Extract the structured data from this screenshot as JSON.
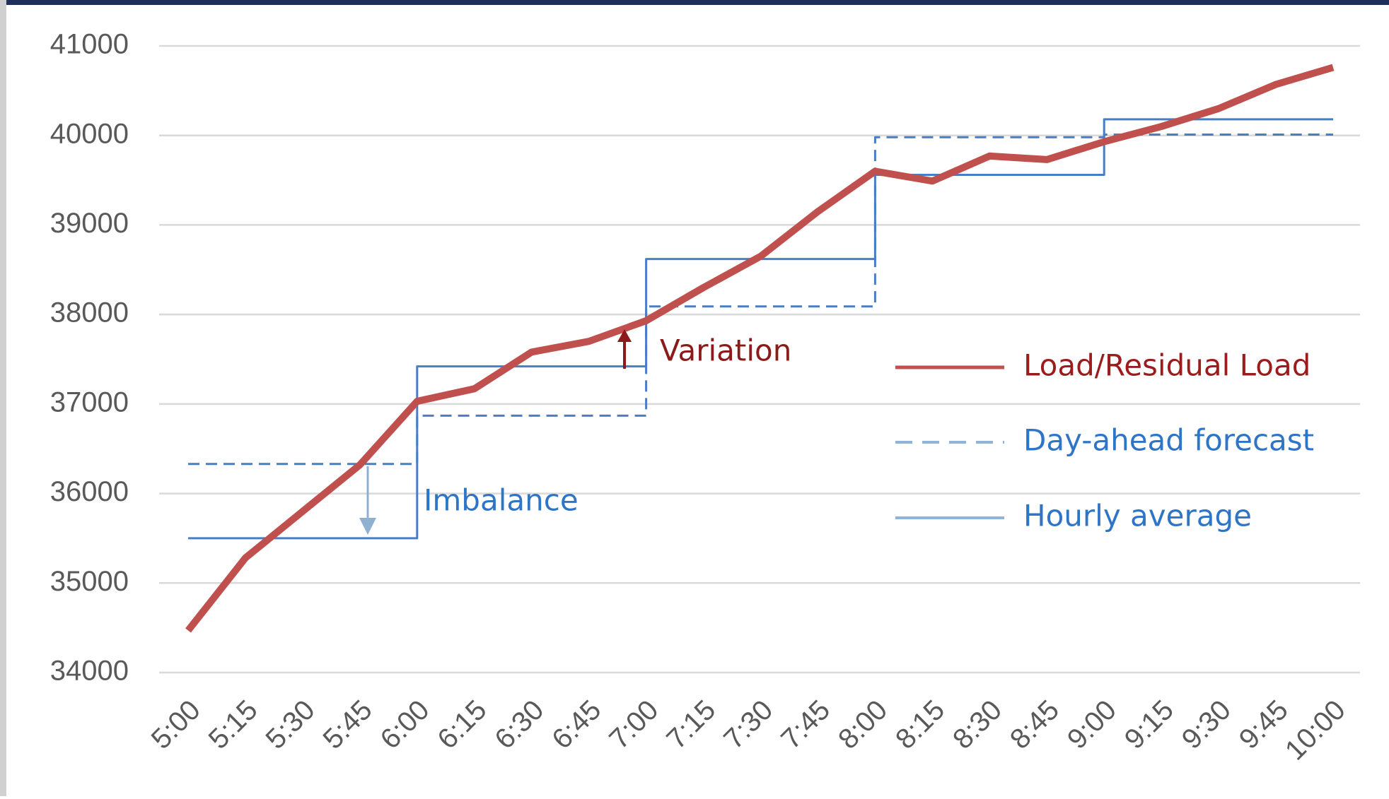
{
  "chart_data": {
    "type": "line",
    "categories": [
      "5:00",
      "5:15",
      "5:30",
      "5:45",
      "6:00",
      "6:15",
      "6:30",
      "6:45",
      "7:00",
      "7:15",
      "7:30",
      "7:45",
      "8:00",
      "8:15",
      "8:30",
      "8:45",
      "9:00",
      "9:15",
      "9:30",
      "9:45",
      "10:00"
    ],
    "series": [
      {
        "name": "Load/Residual Load",
        "color": "#c0504d",
        "text_color": "#9b1c1c",
        "style": "solid",
        "values": [
          34470,
          35280,
          35800,
          36320,
          37030,
          37170,
          37580,
          37700,
          37930,
          38300,
          38650,
          39150,
          39600,
          39490,
          39770,
          39730,
          39930,
          40100,
          40300,
          40570,
          40760
        ]
      },
      {
        "name": "Day-ahead forecast",
        "color": "#4a7ec4",
        "legend_color": "#8fb3d9",
        "text_color": "#2e75c8",
        "style": "dashed",
        "step": "post",
        "values": [
          36330,
          36330,
          36330,
          36330,
          36870,
          36870,
          36870,
          36870,
          38090,
          38090,
          38090,
          38090,
          39980,
          39980,
          39980,
          39980,
          40010,
          40010,
          40010,
          40010,
          40010
        ]
      },
      {
        "name": "Hourly average",
        "color": "#4a7ec4",
        "legend_color": "#8fb3d9",
        "text_color": "#2e75c8",
        "style": "solid",
        "step": "post",
        "values": [
          35500,
          35500,
          35500,
          35500,
          37420,
          37420,
          37420,
          37420,
          38620,
          38620,
          38620,
          38620,
          39560,
          39560,
          39560,
          39560,
          40180,
          40180,
          40180,
          40180,
          40180
        ]
      }
    ],
    "annotations": [
      {
        "text": "Variation",
        "color": "#8b1a1a"
      },
      {
        "text": "Imbalance",
        "color": "#2e75c8"
      }
    ],
    "ylim": [
      34000,
      41000
    ],
    "yticks": [
      34000,
      35000,
      36000,
      37000,
      38000,
      39000,
      40000,
      41000
    ],
    "grid": true,
    "legend": "right"
  }
}
